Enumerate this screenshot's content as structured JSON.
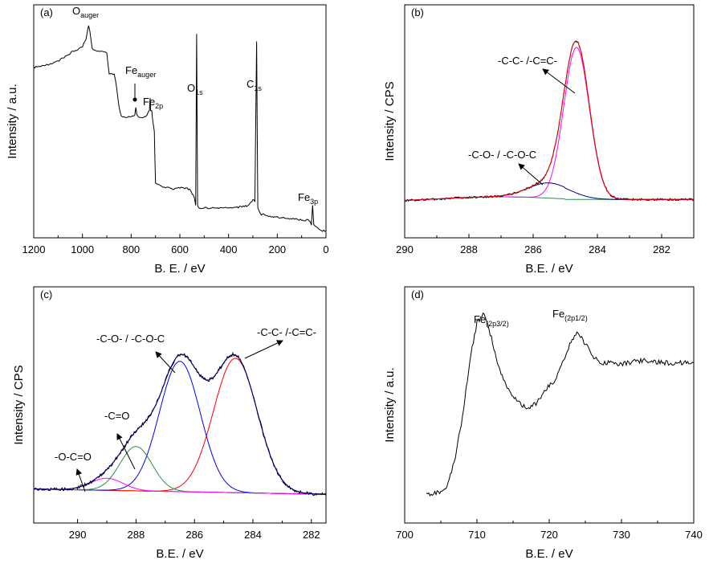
{
  "chart_data": [
    {
      "panel": "(a)",
      "type": "line",
      "xlabel": "B. E. / eV",
      "ylabel": "Intensity / a.u.",
      "xlim": [
        1200,
        0
      ],
      "xticks": [
        1200,
        1000,
        800,
        600,
        400,
        200,
        0
      ],
      "y_ticks_shown": false,
      "annotations": [
        {
          "text": "O",
          "sub": "auger",
          "x": 975
        },
        {
          "text": "Fe",
          "sub": "auger",
          "x": 780
        },
        {
          "text": "Fe",
          "sub": "2p",
          "x": 711
        },
        {
          "text": "O",
          "sub": "1s",
          "x": 531
        },
        {
          "text": "C",
          "sub": "1s",
          "x": 285
        },
        {
          "text": "Fe",
          "sub": "3p",
          "x": 55
        }
      ],
      "series": [
        {
          "color": "#000000",
          "x": [
            1200,
            1150,
            1100,
            1050,
            1000,
            985,
            975,
            970,
            960,
            940,
            920,
            900,
            890,
            870,
            860,
            850,
            840,
            830,
            800,
            785,
            781,
            777,
            770,
            740,
            725,
            722,
            720,
            715,
            711,
            705,
            700,
            690,
            660,
            620,
            590,
            560,
            540,
            535,
            531,
            527,
            520,
            480,
            420,
            380,
            320,
            300,
            292,
            285,
            280,
            270,
            230,
            160,
            100,
            70,
            60,
            55,
            50,
            40,
            20,
            0
          ],
          "y": [
            79,
            80,
            82,
            86,
            89,
            93,
            99,
            97,
            88,
            87,
            87,
            86,
            76,
            76,
            70,
            60,
            55,
            55,
            55,
            56,
            60,
            56,
            55,
            55,
            58,
            64,
            58,
            58,
            53,
            48,
            23,
            22,
            21,
            20,
            21,
            20,
            16,
            12,
            95,
            12,
            11,
            11,
            11,
            11,
            12,
            15,
            14,
            92,
            11,
            8,
            7,
            6,
            5,
            5,
            3,
            12,
            3,
            2,
            0,
            0
          ]
        }
      ]
    },
    {
      "panel": "(b)",
      "type": "line",
      "xlabel": "B.E. / eV",
      "ylabel": "Intensity / CPS",
      "xlim": [
        290,
        281
      ],
      "xticks": [
        290,
        288,
        286,
        284,
        282
      ],
      "y_ticks_shown": false,
      "annotations": [
        {
          "text": "-C-C- /-C=C-"
        },
        {
          "text": "-C-O- / -C-O-C"
        }
      ],
      "series": [
        {
          "component": "-C-C- /-C=C-",
          "color": "#ff00ff",
          "center": 284.65,
          "height": 100
        },
        {
          "component": "-C-O- / -C-O-C",
          "color": "#000080",
          "center": 285.5,
          "height": 10
        },
        {
          "component": "baseline",
          "color": "#2e8b57"
        },
        {
          "component": "envelope",
          "color": "#ff0000"
        },
        {
          "component": "raw data",
          "color": "#000000"
        }
      ]
    },
    {
      "panel": "(c)",
      "type": "line",
      "xlabel": "B.E. / eV",
      "ylabel": "Intensity / CPS",
      "xlim": [
        291.5,
        281.5
      ],
      "xticks": [
        290,
        288,
        286,
        284,
        282
      ],
      "y_ticks_shown": false,
      "annotations": [
        {
          "text": "-C-C- /-C=C-"
        },
        {
          "text": "-C-O- / -C-O-C"
        },
        {
          "text": "-C=O"
        },
        {
          "text": "-O-C=O"
        }
      ],
      "series": [
        {
          "component": "-C-C- /-C=C-",
          "color": "#ff0000",
          "center": 284.6,
          "height": 100
        },
        {
          "component": "-C-O- / -C-O-C",
          "color": "#0000ff",
          "center": 286.5,
          "height": 97
        },
        {
          "component": "-C=O",
          "color": "#2e8b57",
          "center": 288.0,
          "height": 33
        },
        {
          "component": "-O-C=O",
          "color": "#ff00ff",
          "center": 289.0,
          "height": 9
        },
        {
          "component": "baseline",
          "color": "#808000"
        },
        {
          "component": "envelope",
          "color": "#000080"
        },
        {
          "component": "raw data",
          "color": "#000000"
        }
      ]
    },
    {
      "panel": "(d)",
      "type": "line",
      "xlabel": "B.E. / eV",
      "ylabel": "Intensity / a.u.",
      "xlim": [
        700,
        740
      ],
      "xticks": [
        700,
        710,
        720,
        730,
        740
      ],
      "y_ticks_shown": false,
      "annotations": [
        {
          "text": "Fe",
          "sub": "(2p3/2)",
          "x": 711
        },
        {
          "text": "Fe",
          "sub": "(2p1/2)",
          "x": 724.5
        }
      ],
      "series": [
        {
          "color": "#000000",
          "x": [
            703,
            705,
            706,
            707,
            708,
            709,
            710,
            711,
            712,
            713,
            714,
            715,
            716,
            717,
            718,
            719,
            720,
            721,
            722,
            723,
            724,
            725,
            726,
            727,
            728,
            730,
            732,
            734,
            736,
            738,
            740
          ],
          "y": [
            5,
            6,
            10,
            25,
            45,
            75,
            95,
            100,
            87,
            72,
            62,
            57,
            52,
            50,
            52,
            57,
            62,
            66,
            75,
            85,
            90,
            84,
            78,
            74,
            74,
            73,
            75,
            75,
            74,
            74,
            74
          ]
        }
      ]
    }
  ]
}
